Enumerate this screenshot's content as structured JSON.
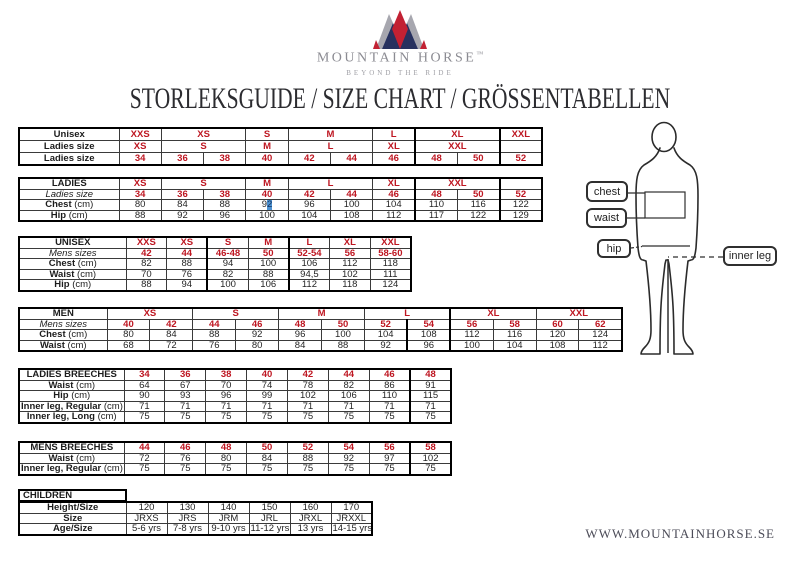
{
  "page_title": "STORLEKSGUIDE / SIZE CHART / GRÖSSENTABELLEN",
  "brand": {
    "name": "MOUNTAIN HORSE",
    "trademark": "™",
    "tagline": "BEYOND THE RIDE",
    "website": "WWW.MOUNTAINHORSE.SE"
  },
  "colors": {
    "size_red": "#be1621",
    "logo_red": "#c22133",
    "logo_navy": "#27315f",
    "logo_silver": "#a7a7af",
    "selection_blue": "#4f93d2"
  },
  "figure": {
    "labels": {
      "chest": "chest",
      "waist": "waist",
      "hip": "hip",
      "inner_leg": "inner leg"
    }
  },
  "tables": [
    {
      "name": "unisex-ladies-conversion",
      "cols": 10,
      "emph_cols": [
        8,
        9
      ],
      "rows": [
        {
          "label": {
            "t": "Unisex"
          },
          "d": "size",
          "cells": [
            "XXS",
            {
              "t": "XS",
              "s": 2
            },
            "S",
            {
              "t": "M",
              "s": 2
            },
            "L",
            {
              "t": "XL",
              "s": 2
            },
            "XXL"
          ]
        },
        {
          "label": {
            "t": "Ladies size"
          },
          "d": "size",
          "cells": [
            "XS",
            {
              "t": "S",
              "s": 2
            },
            "M",
            {
              "t": "L",
              "s": 2
            },
            "XL",
            {
              "t": "XXL",
              "s": 2
            },
            {
              "t": "",
              "k": "val"
            }
          ]
        },
        {
          "label": {
            "t": "Ladies size"
          },
          "d": "size",
          "cells": [
            "34",
            "36",
            "38",
            "40",
            "42",
            "44",
            "46",
            "48",
            "50",
            "52"
          ]
        }
      ]
    },
    {
      "name": "ladies",
      "cols": 10,
      "emph_cols": [
        8,
        9
      ],
      "rows": [
        {
          "label": {
            "t": "LADIES"
          },
          "d": "size",
          "cells": [
            "XS",
            {
              "t": "S",
              "s": 2
            },
            "M",
            {
              "t": "L",
              "s": 2
            },
            "XL",
            {
              "t": "XXL",
              "s": 2
            },
            {
              "t": "",
              "k": "val"
            }
          ]
        },
        {
          "label": {
            "t": "Ladies size",
            "i": true
          },
          "d": "size",
          "cells": [
            "34",
            "36",
            "38",
            "40",
            "42",
            "44",
            "46",
            "48",
            "50",
            "52"
          ]
        },
        {
          "label": {
            "t": "Chest",
            "r": "(cm)"
          },
          "d": "val",
          "cells": [
            "80",
            "84",
            "88",
            {
              "t": "9",
              "sel": "2"
            },
            "96",
            "100",
            "104",
            "110",
            "116",
            "122"
          ]
        },
        {
          "label": {
            "t": "Hip",
            "r": "(cm)"
          },
          "d": "val",
          "cells": [
            "88",
            "92",
            "96",
            "100",
            "104",
            "108",
            "112",
            "117",
            "122",
            "129"
          ]
        }
      ]
    },
    {
      "name": "unisex",
      "cols": 7,
      "emph_cols": [
        3,
        4
      ],
      "rows": [
        {
          "label": {
            "t": "UNISEX"
          },
          "d": "size",
          "cells": [
            "XXS",
            "XS",
            "S",
            "M",
            "L",
            "XL",
            "XXL"
          ]
        },
        {
          "label": {
            "t": "Mens sizes",
            "i": true
          },
          "d": "size",
          "cells": [
            "42",
            "44",
            "46-48",
            "50",
            "52-54",
            "56",
            "58-60"
          ]
        },
        {
          "label": {
            "t": "Chest",
            "r": "(cm)"
          },
          "d": "val",
          "cells": [
            "82",
            "88",
            "94",
            "100",
            "106",
            "112",
            "118"
          ]
        },
        {
          "label": {
            "t": "Waist",
            "r": "(cm)"
          },
          "d": "val",
          "cells": [
            "70",
            "76",
            "82",
            "88",
            "94,5",
            "102",
            "111"
          ]
        },
        {
          "label": {
            "t": "Hip",
            "r": "(cm)"
          },
          "d": "val",
          "cells": [
            "88",
            "94",
            "100",
            "106",
            "112",
            "118",
            "124"
          ]
        }
      ]
    },
    {
      "name": "men",
      "cols": 12,
      "emph_cols": [
        8
      ],
      "rows": [
        {
          "label": {
            "t": "MEN"
          },
          "d": "size",
          "cells": [
            {
              "t": "XS",
              "s": 2
            },
            {
              "t": "S",
              "s": 2
            },
            {
              "t": "M",
              "s": 2
            },
            {
              "t": "L",
              "s": 2
            },
            {
              "t": "XL",
              "s": 2
            },
            {
              "t": "XXL",
              "s": 2
            }
          ]
        },
        {
          "label": {
            "t": "Mens sizes",
            "i": true
          },
          "d": "size",
          "cells": [
            "40",
            "42",
            "44",
            "46",
            "48",
            "50",
            "52",
            "54",
            "56",
            "58",
            "60",
            "62"
          ]
        },
        {
          "label": {
            "t": "Chest",
            "r": "(cm)"
          },
          "d": "val",
          "cells": [
            "80",
            "84",
            "88",
            "92",
            "96",
            "100",
            "104",
            "108",
            "112",
            "116",
            "120",
            "124"
          ]
        },
        {
          "label": {
            "t": "Waist",
            "r": "(cm)"
          },
          "d": "val",
          "cells": [
            "68",
            "72",
            "76",
            "80",
            "84",
            "88",
            "92",
            "96",
            "100",
            "104",
            "108",
            "112"
          ]
        }
      ]
    },
    {
      "name": "ladies-breeches",
      "cols": 8,
      "emph_cols": [
        8
      ],
      "rows": [
        {
          "label": {
            "t": "LADIES BREECHES"
          },
          "d": "size",
          "cells": [
            "34",
            "36",
            "38",
            "40",
            "42",
            "44",
            "46",
            "48"
          ]
        },
        {
          "label": {
            "t": "Waist",
            "r": "(cm)"
          },
          "d": "val",
          "cells": [
            "64",
            "67",
            "70",
            "74",
            "78",
            "82",
            "86",
            "91"
          ]
        },
        {
          "label": {
            "t": "Hip",
            "r": "(cm)"
          },
          "d": "val",
          "cells": [
            "90",
            "93",
            "96",
            "99",
            "102",
            "106",
            "110",
            "115"
          ]
        },
        {
          "label": {
            "t": "Inner leg, Regular",
            "r": "(cm)"
          },
          "d": "val",
          "cells": [
            "71",
            "71",
            "71",
            "71",
            "71",
            "71",
            "71",
            "71"
          ]
        },
        {
          "label": {
            "t": "Inner leg, Long",
            "r": "(cm)"
          },
          "d": "val",
          "cells": [
            "75",
            "75",
            "75",
            "75",
            "75",
            "75",
            "75",
            "75"
          ]
        }
      ]
    },
    {
      "name": "mens-breeches",
      "cols": 8,
      "emph_cols": [
        8
      ],
      "rows": [
        {
          "label": {
            "t": "MENS BREECHES"
          },
          "d": "size",
          "cells": [
            "44",
            "46",
            "48",
            "50",
            "52",
            "54",
            "56",
            "58"
          ]
        },
        {
          "label": {
            "t": "Waist",
            "r": "(cm)"
          },
          "d": "val",
          "cells": [
            "72",
            "76",
            "80",
            "84",
            "88",
            "92",
            "97",
            "102"
          ]
        },
        {
          "label": {
            "t": "Inner leg, Regular",
            "r": "(cm)"
          },
          "d": "val",
          "cells": [
            "75",
            "75",
            "75",
            "75",
            "75",
            "75",
            "75",
            "75"
          ]
        }
      ]
    },
    {
      "name": "children",
      "header_label": "CHILDREN",
      "cols": 6,
      "rows": [
        {
          "label": {
            "t": "Height/Size"
          },
          "d": "val",
          "cells": [
            "120",
            "130",
            "140",
            "150",
            "160",
            "170"
          ]
        },
        {
          "label": {
            "t": "Size"
          },
          "d": "val",
          "cells": [
            "JRXS",
            "JRS",
            "JRM",
            "JRL",
            "JRXL",
            "JRXXL"
          ]
        },
        {
          "label": {
            "t": "Age/Size"
          },
          "d": "val",
          "cells": [
            "5-6 yrs",
            "7-8 yrs",
            "9-10 yrs",
            "11-12 yrs",
            "13 yrs",
            "14-15 yrs"
          ]
        }
      ]
    }
  ]
}
